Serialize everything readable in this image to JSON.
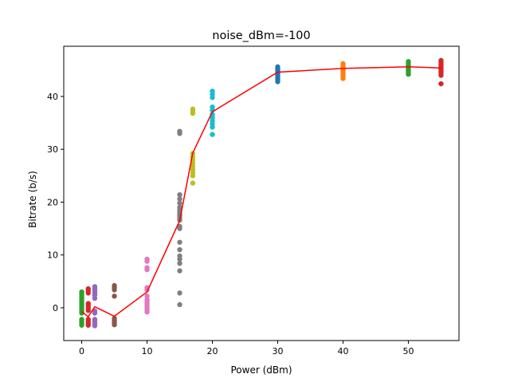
{
  "chart_data": {
    "type": "scatter",
    "title": "noise_dBm=-100",
    "xlabel": "Power (dBm)",
    "ylabel": "Bitrate (b/s)",
    "xlim": [
      -2.75,
      57.75
    ],
    "ylim": [
      -6.2,
      49.5
    ],
    "xticks": [
      0,
      10,
      20,
      30,
      40,
      50
    ],
    "yticks": [
      0,
      10,
      20,
      30,
      40
    ],
    "grid": false,
    "legend": "none",
    "series": [
      {
        "x": 0,
        "color": "#2ca02c",
        "values": [
          3.0,
          2.6,
          2.2,
          1.8,
          1.4,
          1.0,
          0.6,
          0.2,
          -0.2,
          -0.6,
          -1.0,
          -2.2,
          -2.6,
          -3.0,
          -3.3
        ]
      },
      {
        "x": 1,
        "color": "#d62728",
        "values": [
          3.6,
          3.2,
          2.8,
          0.8,
          0.4,
          -0.1,
          -0.5,
          -2.2,
          -2.6,
          -3.0,
          -3.3
        ]
      },
      {
        "x": 2,
        "color": "#9467bd",
        "values": [
          4.0,
          3.6,
          3.2,
          2.8,
          2.4,
          1.8,
          -0.6,
          -1.0,
          -2.2,
          -2.6,
          -3.0,
          -3.4
        ]
      },
      {
        "x": 5,
        "color": "#8c564b",
        "values": [
          4.2,
          3.8,
          3.4,
          2.2,
          -2.0,
          -2.4,
          -2.8,
          -3.2
        ]
      },
      {
        "x": 10,
        "color": "#e377c2",
        "values": [
          9.2,
          8.8,
          7.6,
          7.2,
          3.8,
          3.4,
          2.2,
          1.6,
          1.2,
          0.8,
          0.4,
          0.0,
          -0.4,
          -0.8
        ]
      },
      {
        "x": 15,
        "color": "#7f7f7f",
        "values": [
          33.4,
          33.0,
          21.4,
          20.6,
          19.8,
          19.0,
          18.6,
          18.2,
          17.8,
          17.4,
          17.0,
          16.6,
          15.4,
          15.0,
          12.4,
          11.0,
          9.8,
          9.2,
          8.4,
          7.0,
          2.8,
          0.6
        ]
      },
      {
        "x": 17,
        "color": "#bcbd22",
        "values": [
          37.6,
          37.2,
          36.8,
          29.2,
          28.6,
          28.0,
          27.4,
          26.8,
          26.2,
          25.6,
          25.0,
          23.6
        ]
      },
      {
        "x": 20,
        "color": "#17becf",
        "values": [
          41.0,
          40.4,
          39.8,
          38.0,
          37.4,
          36.6,
          36.0,
          35.4,
          34.8,
          34.2,
          32.8
        ]
      },
      {
        "x": 30,
        "color": "#1f77b4",
        "values": [
          45.6,
          45.2,
          44.8,
          44.4,
          44.0,
          43.6,
          43.2,
          42.8
        ]
      },
      {
        "x": 40,
        "color": "#ff7f0e",
        "values": [
          46.2,
          45.8,
          45.4,
          45.0,
          44.6,
          44.2,
          43.8,
          43.4
        ]
      },
      {
        "x": 50,
        "color": "#2ca02c",
        "values": [
          46.6,
          46.2,
          45.8,
          45.4,
          45.0,
          44.6,
          44.2
        ]
      },
      {
        "x": 55,
        "color": "#d62728",
        "values": [
          46.8,
          46.4,
          46.0,
          45.6,
          45.2,
          44.8,
          44.4,
          44.0,
          42.4
        ]
      }
    ],
    "mean_line": {
      "color": "#ff0000",
      "x": [
        0,
        1,
        2,
        5,
        10,
        15,
        17,
        20,
        30,
        40,
        50,
        55
      ],
      "y": [
        -0.7,
        -1.7,
        0.2,
        -1.6,
        3.0,
        16.5,
        29.3,
        37.1,
        44.6,
        45.3,
        45.6,
        45.4
      ]
    }
  }
}
